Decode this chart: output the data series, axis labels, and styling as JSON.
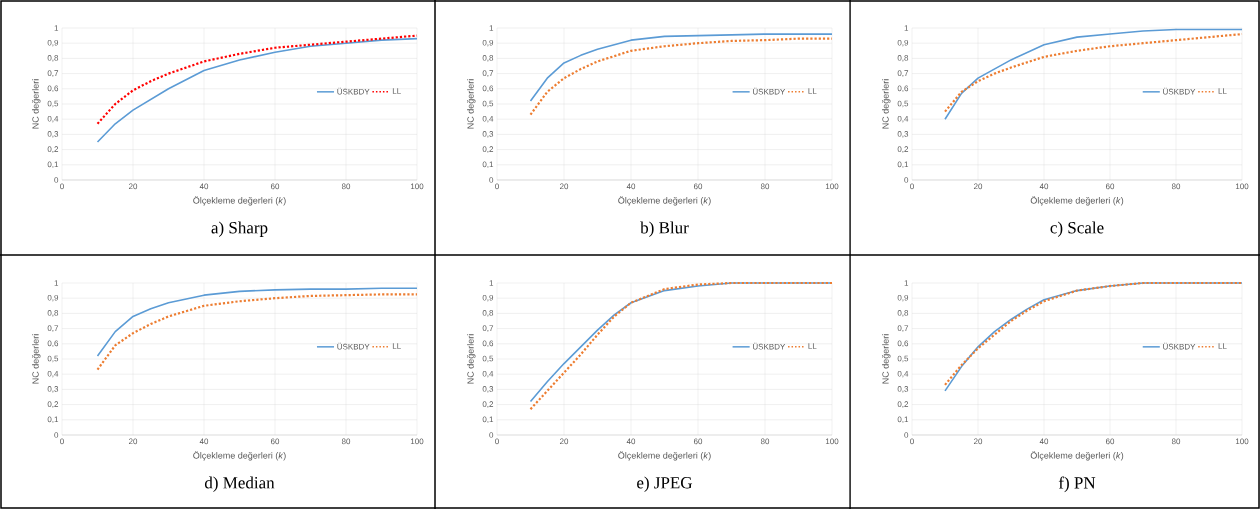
{
  "chart_data": [
    {
      "type": "line",
      "title": "a) Sharp",
      "xlabel": "Ölçekleme değerleri (*k*)",
      "ylabel": "NC değerleri",
      "grid": true,
      "legend": "right",
      "xlim": [
        0,
        100
      ],
      "xticks": [
        0,
        20,
        40,
        60,
        80,
        100
      ],
      "ylim": [
        0,
        1
      ],
      "yticks": [
        0,
        {
          "value": 0.1,
          "label": "0,1"
        },
        {
          "value": 0.2,
          "label": "0,2"
        },
        {
          "value": 0.3,
          "label": "0,3"
        },
        {
          "value": 0.4,
          "label": "0,4"
        },
        {
          "value": 0.5,
          "label": "0,5"
        },
        {
          "value": 0.6,
          "label": "0,6"
        },
        {
          "value": 0.7,
          "label": "0,7"
        },
        {
          "value": 0.8,
          "label": "0,8"
        },
        {
          "value": 0.9,
          "label": "0,9"
        },
        1
      ],
      "x": [
        10,
        15,
        20,
        25,
        30,
        40,
        50,
        60,
        70,
        80,
        90,
        100
      ],
      "series": [
        {
          "name": "ÜSKBDY",
          "color": "#5b9bd5",
          "line_style": "solid",
          "values": [
            0.25,
            0.37,
            0.46,
            0.53,
            0.6,
            0.72,
            0.79,
            0.84,
            0.88,
            0.9,
            0.92,
            0.93
          ]
        },
        {
          "name": "LL",
          "color": "#ff0000",
          "line_style": "dotted",
          "values": [
            0.37,
            0.5,
            0.59,
            0.65,
            0.7,
            0.78,
            0.83,
            0.87,
            0.89,
            0.91,
            0.93,
            0.95
          ]
        }
      ]
    },
    {
      "type": "line",
      "title": "b) Blur",
      "xlabel": "Ölçekleme değerleri (*k*)",
      "ylabel": "NC değerleri",
      "grid": true,
      "legend": "right",
      "xlim": [
        0,
        100
      ],
      "xticks": [
        0,
        20,
        40,
        60,
        80,
        100
      ],
      "ylim": [
        0,
        1
      ],
      "yticks": [
        0,
        {
          "value": 0.1,
          "label": "0,1"
        },
        {
          "value": 0.2,
          "label": "0,2"
        },
        {
          "value": 0.3,
          "label": "0,3"
        },
        {
          "value": 0.4,
          "label": "0,4"
        },
        {
          "value": 0.5,
          "label": "0,5"
        },
        {
          "value": 0.6,
          "label": "0,6"
        },
        {
          "value": 0.7,
          "label": "0,7"
        },
        {
          "value": 0.8,
          "label": "0,8"
        },
        {
          "value": 0.9,
          "label": "0,9"
        },
        1
      ],
      "x": [
        10,
        15,
        20,
        25,
        30,
        40,
        50,
        60,
        70,
        80,
        90,
        100
      ],
      "series": [
        {
          "name": "ÜSKBDY",
          "color": "#5b9bd5",
          "line_style": "solid",
          "values": [
            0.52,
            0.67,
            0.77,
            0.82,
            0.86,
            0.92,
            0.945,
            0.95,
            0.955,
            0.96,
            0.96,
            0.96
          ]
        },
        {
          "name": "LL",
          "color": "#ed7d31",
          "line_style": "dotted",
          "values": [
            0.43,
            0.58,
            0.67,
            0.73,
            0.78,
            0.85,
            0.88,
            0.9,
            0.915,
            0.92,
            0.93,
            0.93
          ]
        }
      ]
    },
    {
      "type": "line",
      "title": "c) Scale",
      "xlabel": "Ölçekleme değerleri (*k*)",
      "ylabel": "NC değerleri",
      "grid": true,
      "legend": "right",
      "xlim": [
        0,
        100
      ],
      "xticks": [
        0,
        20,
        40,
        60,
        80,
        100
      ],
      "ylim": [
        0,
        1
      ],
      "yticks": [
        0,
        {
          "value": 0.1,
          "label": "0,1"
        },
        {
          "value": 0.2,
          "label": "0,2"
        },
        {
          "value": 0.3,
          "label": "0,3"
        },
        {
          "value": 0.4,
          "label": "0,4"
        },
        {
          "value": 0.5,
          "label": "0,5"
        },
        {
          "value": 0.6,
          "label": "0,6"
        },
        {
          "value": 0.7,
          "label": "0,7"
        },
        {
          "value": 0.8,
          "label": "0,8"
        },
        {
          "value": 0.9,
          "label": "0,9"
        },
        1
      ],
      "x": [
        10,
        15,
        20,
        25,
        30,
        40,
        50,
        60,
        70,
        80,
        90,
        100
      ],
      "series": [
        {
          "name": "ÜSKBDY",
          "color": "#5b9bd5",
          "line_style": "solid",
          "values": [
            0.4,
            0.57,
            0.67,
            0.73,
            0.79,
            0.89,
            0.94,
            0.96,
            0.98,
            0.99,
            0.99,
            0.99
          ]
        },
        {
          "name": "LL",
          "color": "#ed7d31",
          "line_style": "dotted",
          "values": [
            0.45,
            0.58,
            0.65,
            0.7,
            0.74,
            0.81,
            0.85,
            0.88,
            0.9,
            0.92,
            0.94,
            0.96
          ]
        }
      ]
    },
    {
      "type": "line",
      "title": "d) Median",
      "xlabel": "Ölçekleme değerleri (*k*)",
      "ylabel": "NC değerleri",
      "grid": true,
      "legend": "right",
      "xlim": [
        0,
        100
      ],
      "xticks": [
        0,
        20,
        40,
        60,
        80,
        100
      ],
      "ylim": [
        0,
        1
      ],
      "yticks": [
        0,
        {
          "value": 0.1,
          "label": "0,1"
        },
        {
          "value": 0.2,
          "label": "0,2"
        },
        {
          "value": 0.3,
          "label": "0,3"
        },
        {
          "value": 0.4,
          "label": "0,4"
        },
        {
          "value": 0.5,
          "label": "0,5"
        },
        {
          "value": 0.6,
          "label": "0,6"
        },
        {
          "value": 0.7,
          "label": "0,7"
        },
        {
          "value": 0.8,
          "label": "0,8"
        },
        {
          "value": 0.9,
          "label": "0,9"
        },
        1
      ],
      "x": [
        10,
        15,
        20,
        25,
        30,
        40,
        50,
        60,
        70,
        80,
        90,
        100
      ],
      "series": [
        {
          "name": "ÜSKBDY",
          "color": "#5b9bd5",
          "line_style": "solid",
          "values": [
            0.52,
            0.68,
            0.78,
            0.83,
            0.87,
            0.92,
            0.945,
            0.955,
            0.96,
            0.96,
            0.965,
            0.965
          ]
        },
        {
          "name": "LL",
          "color": "#ed7d31",
          "line_style": "dotted",
          "values": [
            0.43,
            0.59,
            0.67,
            0.73,
            0.78,
            0.85,
            0.88,
            0.9,
            0.915,
            0.92,
            0.925,
            0.925
          ]
        }
      ]
    },
    {
      "type": "line",
      "title": "e) JPEG",
      "xlabel": "Ölçekleme değerleri (*k*)",
      "ylabel": "NC değerleri",
      "grid": true,
      "legend": "right",
      "xlim": [
        0,
        100
      ],
      "xticks": [
        0,
        20,
        40,
        60,
        80,
        100
      ],
      "ylim": [
        0,
        1
      ],
      "yticks": [
        0,
        {
          "value": 0.1,
          "label": "0,1"
        },
        {
          "value": 0.2,
          "label": "0,2"
        },
        {
          "value": 0.3,
          "label": "0,3"
        },
        {
          "value": 0.4,
          "label": "0,4"
        },
        {
          "value": 0.5,
          "label": "0,5"
        },
        {
          "value": 0.6,
          "label": "0,6"
        },
        {
          "value": 0.7,
          "label": "0,7"
        },
        {
          "value": 0.8,
          "label": "0,8"
        },
        {
          "value": 0.9,
          "label": "0,9"
        },
        1
      ],
      "x": [
        10,
        15,
        20,
        25,
        30,
        35,
        40,
        50,
        60,
        70,
        80,
        90,
        100
      ],
      "series": [
        {
          "name": "ÜSKBDY",
          "color": "#5b9bd5",
          "line_style": "solid",
          "values": [
            0.22,
            0.35,
            0.47,
            0.58,
            0.69,
            0.79,
            0.87,
            0.95,
            0.98,
            1,
            1,
            1,
            1
          ]
        },
        {
          "name": "LL",
          "color": "#ed7d31",
          "line_style": "dotted",
          "values": [
            0.17,
            0.29,
            0.41,
            0.53,
            0.66,
            0.78,
            0.87,
            0.96,
            0.99,
            1,
            1,
            1,
            1
          ]
        }
      ]
    },
    {
      "type": "line",
      "title": "f) PN",
      "xlabel": "Ölçekleme değerleri (*k*)",
      "ylabel": "NC değerleri",
      "grid": true,
      "legend": "right",
      "xlim": [
        0,
        100
      ],
      "xticks": [
        0,
        20,
        40,
        60,
        80,
        100
      ],
      "ylim": [
        0,
        1
      ],
      "yticks": [
        0,
        {
          "value": 0.1,
          "label": "0,1"
        },
        {
          "value": 0.2,
          "label": "0,2"
        },
        {
          "value": 0.3,
          "label": "0,3"
        },
        {
          "value": 0.4,
          "label": "0,4"
        },
        {
          "value": 0.5,
          "label": "0,5"
        },
        {
          "value": 0.6,
          "label": "0,6"
        },
        {
          "value": 0.7,
          "label": "0,7"
        },
        {
          "value": 0.8,
          "label": "0,8"
        },
        {
          "value": 0.9,
          "label": "0,9"
        },
        1
      ],
      "x": [
        10,
        15,
        20,
        25,
        30,
        35,
        40,
        50,
        60,
        70,
        80,
        90,
        100
      ],
      "series": [
        {
          "name": "ÜSKBDY",
          "color": "#5b9bd5",
          "line_style": "solid",
          "values": [
            0.29,
            0.45,
            0.58,
            0.68,
            0.76,
            0.83,
            0.89,
            0.95,
            0.98,
            1,
            1,
            1,
            1
          ]
        },
        {
          "name": "LL",
          "color": "#ed7d31",
          "line_style": "dotted",
          "values": [
            0.33,
            0.46,
            0.57,
            0.66,
            0.75,
            0.82,
            0.88,
            0.95,
            0.98,
            1,
            1,
            1,
            1
          ]
        }
      ]
    }
  ]
}
